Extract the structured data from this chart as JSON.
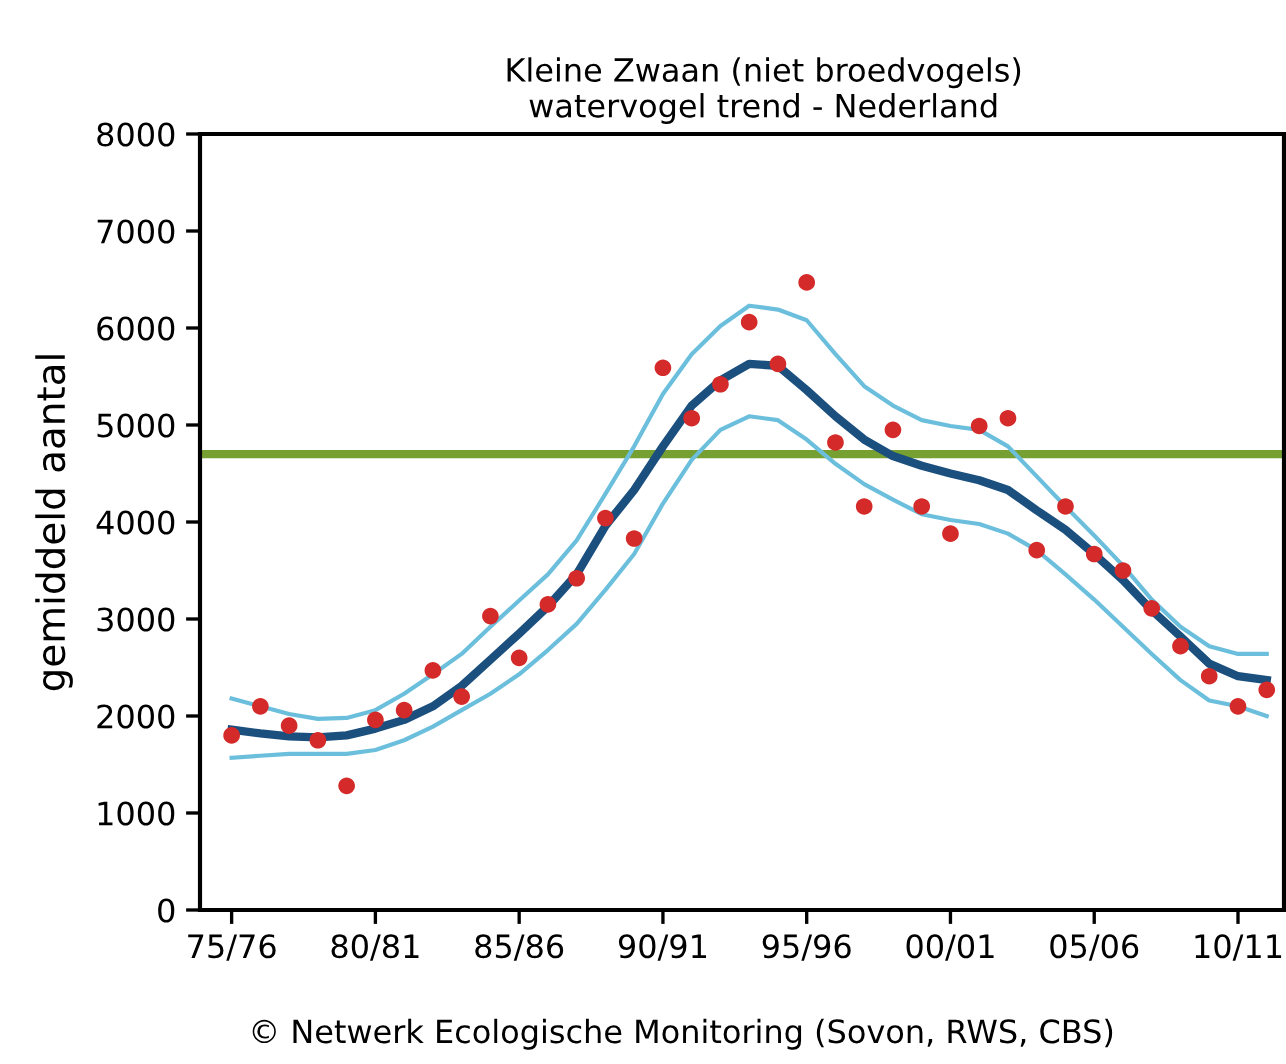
{
  "chart_data": {
    "type": "line",
    "title": "Kleine Zwaan (niet broedvogels)\nwatervogel trend - Nederland",
    "ylabel": "gemiddeld aantal",
    "annotations": [
      "© Netwerk Ecologische Monitoring (Sovon, RWS, CBS)"
    ],
    "categories": [
      "75/76",
      null,
      null,
      null,
      null,
      "80/81",
      null,
      null,
      null,
      null,
      "85/86",
      null,
      null,
      null,
      null,
      "90/91",
      null,
      null,
      null,
      null,
      "95/96",
      null,
      null,
      null,
      null,
      "00/01",
      null,
      null,
      null,
      null,
      "05/06",
      null,
      null,
      null,
      null,
      "10/11",
      null
    ],
    "ylim": [
      0,
      8000
    ],
    "yticks": [
      0,
      1000,
      2000,
      3000,
      4000,
      5000,
      6000,
      7000,
      8000
    ],
    "grid": false,
    "series": [
      {
        "color": "#6bbfdc",
        "values": [
          2180,
          2100,
          2020,
          1970,
          1980,
          2060,
          2230,
          2430,
          2640,
          2920,
          3190,
          3460,
          3810,
          4290,
          4780,
          5320,
          5730,
          6020,
          6230,
          6190,
          6080,
          5730,
          5400,
          5200,
          5050,
          4990,
          4950,
          4780,
          4470,
          4160,
          3860,
          3550,
          3200,
          2920,
          2720,
          2640,
          2640
        ]
      },
      {
        "color": "#6bbfdc",
        "values": [
          1570,
          1590,
          1610,
          1610,
          1610,
          1650,
          1750,
          1890,
          2060,
          2230,
          2430,
          2680,
          2950,
          3300,
          3670,
          4190,
          4640,
          4950,
          5090,
          5050,
          4850,
          4600,
          4390,
          4230,
          4080,
          4020,
          3980,
          3880,
          3710,
          3460,
          3200,
          2920,
          2640,
          2370,
          2160,
          2100,
          2000
        ]
      },
      {
        "color": "#1b4f7e",
        "values": [
          1860,
          1820,
          1790,
          1780,
          1800,
          1870,
          1960,
          2100,
          2310,
          2580,
          2850,
          3130,
          3460,
          3960,
          4330,
          4780,
          5200,
          5460,
          5630,
          5610,
          5360,
          5090,
          4850,
          4680,
          4580,
          4500,
          4430,
          4330,
          4120,
          3920,
          3670,
          3400,
          3090,
          2820,
          2540,
          2410,
          2370
        ]
      },
      {
        "type": "scatter",
        "color": "#d42a2a",
        "marker": "circle",
        "values": [
          1800,
          2100,
          1900,
          1750,
          1280,
          1960,
          2060,
          2470,
          2200,
          3030,
          2600,
          3150,
          3420,
          4040,
          3830,
          5590,
          5070,
          5420,
          6060,
          5630,
          6470,
          4820,
          4160,
          4950,
          4160,
          3880,
          4990,
          5070,
          3710,
          4160,
          3670,
          3500,
          3110,
          2720,
          2410,
          2100,
          2270
        ]
      }
    ],
    "ref_lines": [
      {
        "axis": "y",
        "value": 4700,
        "color": "#76a032"
      }
    ]
  }
}
